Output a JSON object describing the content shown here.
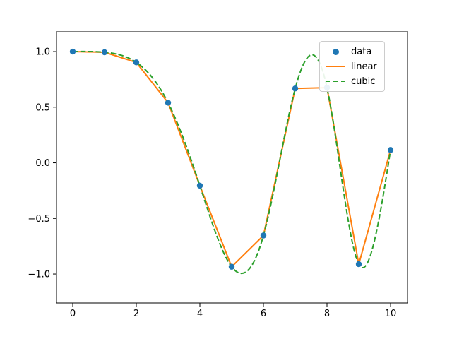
{
  "chart_data": {
    "type": "line",
    "title": "",
    "xlabel": "",
    "ylabel": "",
    "x": [
      0,
      1,
      2,
      3,
      4,
      5,
      6,
      7,
      8,
      9,
      10
    ],
    "series": [
      {
        "name": "data",
        "style": "scatter",
        "color": "#1f77b4",
        "y": [
          1.0,
          0.9938,
          0.9029,
          0.5403,
          -0.2055,
          -0.9345,
          -0.6536,
          0.6686,
          0.6759,
          -0.9111,
          0.1153
        ]
      },
      {
        "name": "linear",
        "style": "solid-line",
        "color": "#ff7f0e",
        "interpolation": "linear"
      },
      {
        "name": "cubic",
        "style": "dashed-line",
        "color": "#2ca02c",
        "interpolation": "cubic"
      }
    ],
    "xticks": [
      0,
      2,
      4,
      6,
      8,
      10
    ],
    "xtick_labels": [
      "0",
      "2",
      "4",
      "6",
      "8",
      "10"
    ],
    "yticks": [
      1.0,
      0.5,
      0.0,
      -0.5,
      -1.0
    ],
    "ytick_labels": [
      "1.0",
      "0.5",
      "0.0",
      "−0.5",
      "−1.0"
    ],
    "xlim": [
      -0.511,
      10.533
    ],
    "ylim": [
      -1.26,
      1.178
    ],
    "grid": false,
    "legend": {
      "position": "upper right",
      "entries": [
        "data",
        "linear",
        "cubic"
      ]
    }
  },
  "style": {
    "background": "#ffffff",
    "axes_edge_color": "#000000",
    "tick_color": "#000000",
    "legend_border_color": "#cccccc"
  }
}
